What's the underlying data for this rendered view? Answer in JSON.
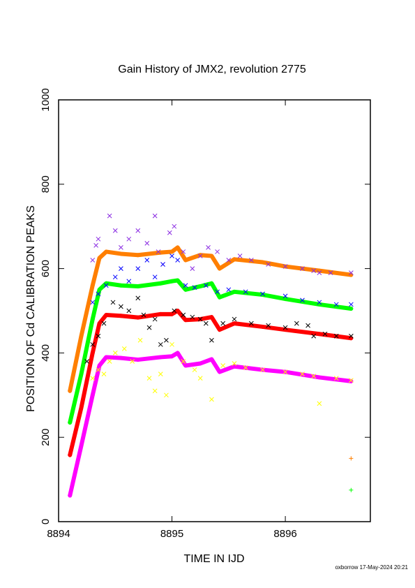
{
  "chart_data": {
    "type": "scatter",
    "title": "Gain History of JMX2, revolution 2775",
    "xlabel": "TIME IN IJD",
    "ylabel": "POSITION OF Cd CALIBRATION PEAKS",
    "xlim": [
      8894.0,
      8896.75
    ],
    "ylim": [
      0,
      1000
    ],
    "x_ticks": [
      8894,
      8895,
      8896
    ],
    "x_tick_labels": [
      "8894",
      "8895",
      "8896"
    ],
    "y_ticks": [
      0,
      200,
      400,
      600,
      800,
      1000
    ],
    "y_tick_labels": [
      "0",
      "200",
      "400",
      "600",
      "800",
      "1000"
    ],
    "grid": false,
    "legend": "none",
    "footer": "oxborrow 17-May-2024 20:21",
    "series": [
      {
        "color": "#ff7f00",
        "marker": "plus",
        "kind": "fit",
        "x": [
          8894.1,
          8894.2,
          8894.3,
          8894.36,
          8894.42,
          8894.55,
          8894.7,
          8894.9,
          8895.0,
          8895.05,
          8895.12,
          8895.25,
          8895.35,
          8895.42,
          8895.55,
          8895.8,
          8896.0,
          8896.3,
          8896.58
        ],
        "y": [
          310,
          440,
          560,
          625,
          640,
          635,
          632,
          638,
          640,
          650,
          620,
          632,
          630,
          600,
          622,
          615,
          605,
          595,
          585
        ]
      },
      {
        "color": "#00ff00",
        "marker": "plus",
        "kind": "fit",
        "x": [
          8894.1,
          8894.2,
          8894.3,
          8894.36,
          8894.42,
          8894.55,
          8894.7,
          8894.9,
          8895.0,
          8895.05,
          8895.12,
          8895.25,
          8895.35,
          8895.42,
          8895.55,
          8895.8,
          8896.0,
          8896.3,
          8896.58
        ],
        "y": [
          235,
          350,
          480,
          550,
          565,
          560,
          558,
          565,
          570,
          572,
          550,
          558,
          565,
          532,
          545,
          538,
          528,
          515,
          505
        ]
      },
      {
        "color": "#ff0000",
        "marker": "plus",
        "kind": "fit",
        "x": [
          8894.1,
          8894.2,
          8894.3,
          8894.36,
          8894.42,
          8894.55,
          8894.7,
          8894.9,
          8895.0,
          8895.05,
          8895.12,
          8895.25,
          8895.35,
          8895.42,
          8895.55,
          8895.8,
          8896.0,
          8896.3,
          8896.58
        ],
        "y": [
          158,
          270,
          400,
          470,
          490,
          488,
          484,
          492,
          492,
          500,
          478,
          480,
          485,
          455,
          470,
          462,
          455,
          445,
          435
        ]
      },
      {
        "color": "#ff00ff",
        "marker": "plus",
        "kind": "fit",
        "x": [
          8894.1,
          8894.2,
          8894.3,
          8894.36,
          8894.42,
          8894.55,
          8894.7,
          8894.9,
          8895.0,
          8895.05,
          8895.12,
          8895.25,
          8895.35,
          8895.42,
          8895.55,
          8895.8,
          8896.0,
          8896.3,
          8896.58
        ],
        "y": [
          62,
          180,
          300,
          370,
          390,
          388,
          384,
          390,
          392,
          400,
          370,
          375,
          385,
          355,
          368,
          360,
          355,
          342,
          333
        ]
      },
      {
        "color": "#8a2be2",
        "marker": "cross",
        "kind": "points",
        "x": [
          8894.3,
          8894.33,
          8894.35,
          8894.45,
          8894.5,
          8894.55,
          8894.62,
          8894.7,
          8894.78,
          8894.85,
          8894.88,
          8894.92,
          8894.98,
          8895.02,
          8895.1,
          8895.18,
          8895.25,
          8895.32,
          8895.4,
          8895.5,
          8895.6,
          8895.7,
          8895.85,
          8896.0,
          8896.15,
          8896.25,
          8896.3,
          8896.4,
          8896.58
        ],
        "y": [
          620,
          655,
          670,
          725,
          690,
          650,
          670,
          690,
          660,
          725,
          640,
          610,
          685,
          700,
          640,
          600,
          630,
          650,
          640,
          620,
          630,
          620,
          610,
          605,
          600,
          595,
          590,
          590,
          590
        ]
      },
      {
        "color": "#0000ff",
        "marker": "cross",
        "kind": "points",
        "x": [
          8894.3,
          8894.35,
          8894.42,
          8894.5,
          8894.55,
          8894.62,
          8894.7,
          8894.78,
          8894.85,
          8894.92,
          8895.0,
          8895.05,
          8895.12,
          8895.2,
          8895.3,
          8895.4,
          8895.5,
          8895.65,
          8895.8,
          8896.0,
          8896.15,
          8896.3,
          8896.45,
          8896.58
        ],
        "y": [
          520,
          540,
          560,
          580,
          600,
          570,
          600,
          620,
          580,
          610,
          630,
          620,
          560,
          555,
          560,
          545,
          550,
          545,
          540,
          535,
          525,
          520,
          515,
          515
        ]
      },
      {
        "color": "#000000",
        "marker": "cross",
        "kind": "points",
        "x": [
          8894.25,
          8894.3,
          8894.35,
          8894.4,
          8894.48,
          8894.55,
          8894.62,
          8894.7,
          8894.75,
          8894.8,
          8894.85,
          8894.9,
          8894.95,
          8895.02,
          8895.1,
          8895.18,
          8895.25,
          8895.3,
          8895.35,
          8895.45,
          8895.55,
          8895.7,
          8895.85,
          8896.0,
          8896.1,
          8896.2,
          8896.25,
          8896.35,
          8896.45,
          8896.58
        ],
        "y": [
          380,
          420,
          440,
          470,
          520,
          510,
          500,
          530,
          490,
          460,
          480,
          420,
          430,
          500,
          490,
          485,
          480,
          470,
          430,
          470,
          480,
          470,
          465,
          460,
          470,
          465,
          440,
          445,
          440,
          440
        ]
      },
      {
        "color": "#ffff00",
        "marker": "cross",
        "kind": "points",
        "x": [
          8894.3,
          8894.35,
          8894.4,
          8894.45,
          8894.5,
          8894.58,
          8894.65,
          8894.72,
          8894.8,
          8894.85,
          8894.9,
          8894.95,
          8895.0,
          8895.1,
          8895.2,
          8895.25,
          8895.35,
          8895.45,
          8895.55,
          8895.65,
          8895.8,
          8896.0,
          8896.15,
          8896.25,
          8896.3,
          8896.45,
          8896.58
        ],
        "y": [
          340,
          360,
          350,
          380,
          400,
          410,
          380,
          430,
          340,
          310,
          350,
          300,
          420,
          380,
          360,
          340,
          290,
          370,
          375,
          365,
          360,
          355,
          350,
          345,
          280,
          340,
          335
        ]
      },
      {
        "color": "#ff7f00",
        "marker": "plus",
        "kind": "points",
        "x": [
          8896.58
        ],
        "y": [
          150
        ]
      },
      {
        "color": "#00ff00",
        "marker": "plus",
        "kind": "points",
        "x": [
          8896.58
        ],
        "y": [
          75
        ]
      }
    ]
  }
}
